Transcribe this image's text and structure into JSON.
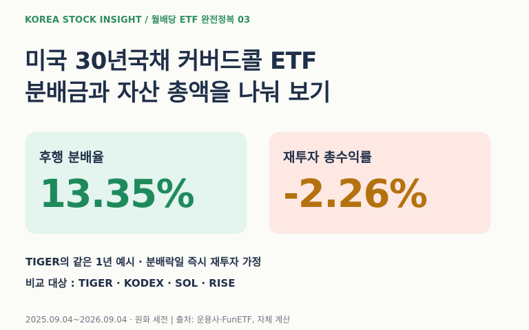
{
  "kicker": "KOREA STOCK INSIGHT / 월배당 ETF 완전정복 03",
  "headline": {
    "line1": "미국 30년국채 커버드콜 ETF",
    "line2": "분배금과 자산 총액을 나눠 보기"
  },
  "cards": [
    {
      "label": "후행 분배율",
      "value": "13.35%",
      "accent": "#1e8a5c",
      "background": "#e4f4ef"
    },
    {
      "label": "재투자 총수익률",
      "value": "-2.26%",
      "accent": "#b4720f",
      "background": "#fde8e4"
    }
  ],
  "notes": {
    "assumption": "TIGER의 같은 1년 예시 · 분배락일 즉시 재투자 가정",
    "comparison": "비교 대상 : TIGER · KODEX · SOL · RISE"
  },
  "footer": "2025.09.04~2026.09.04 · 원화 세전 | 출처: 운용사·FunETF, 자체 계산"
}
